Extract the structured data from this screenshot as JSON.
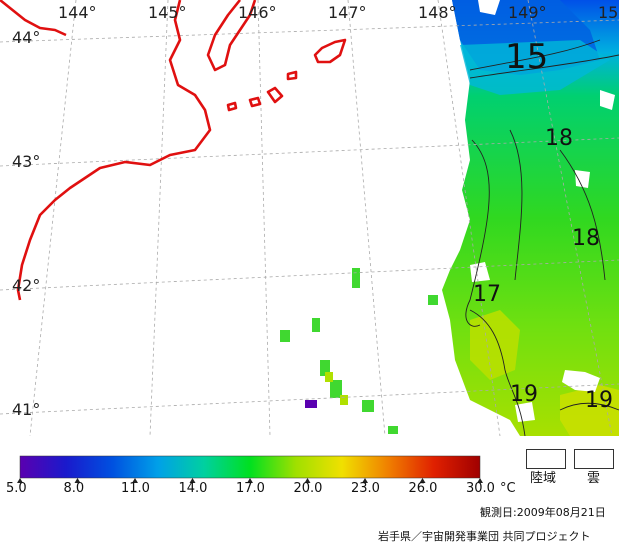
{
  "map": {
    "longitudes": [
      "144°",
      "145°",
      "146°",
      "147°",
      "148°",
      "149°",
      "15"
    ],
    "latitudes": [
      "44°",
      "43°",
      "42°",
      "41°"
    ],
    "contour_labels": [
      "15",
      "18",
      "18",
      "17",
      "19",
      "19"
    ]
  },
  "colorbar": {
    "ticks": [
      "5.0",
      "8.0",
      "11.0",
      "14.0",
      "17.0",
      "20.0",
      "23.0",
      "26.0",
      "30.0"
    ],
    "unit": "°C",
    "colors": [
      "#5a00b0",
      "#1a1acc",
      "#0050e0",
      "#00a0e8",
      "#00d0a0",
      "#00e020",
      "#a0e000",
      "#f0e000",
      "#f08000",
      "#e02000",
      "#a00000"
    ]
  },
  "legend": {
    "land_label": "陸域",
    "cloud_label": "雲"
  },
  "observation_date": "観測日:2009年08月21日",
  "credit": "岩手県／宇宙開発事業団  共同プロジェクト",
  "colors": {
    "coastline": "#e01010",
    "grid": "#aaaaaa"
  }
}
